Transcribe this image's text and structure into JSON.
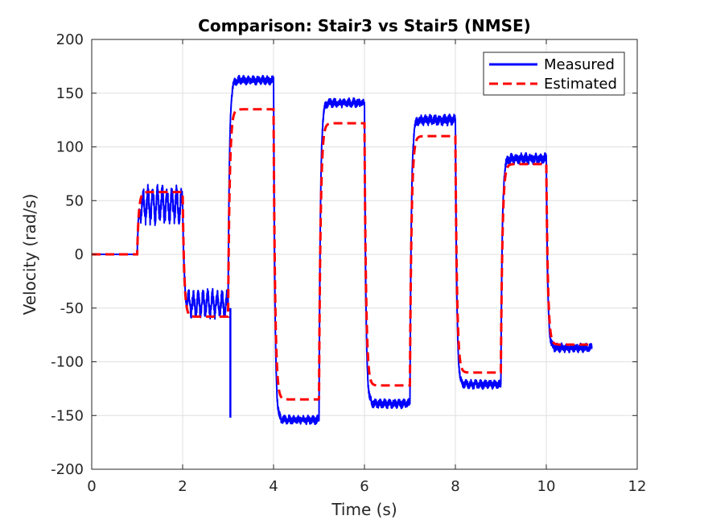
{
  "chart_data": {
    "type": "line",
    "title": "Comparison: Stair3 vs Stair5 (NMSE)",
    "xlabel": "Time (s)",
    "ylabel": "Velocity (rad/s)",
    "xlim": [
      0,
      12
    ],
    "ylim": [
      -200,
      200
    ],
    "xticks": [
      0,
      2,
      4,
      6,
      8,
      10,
      12
    ],
    "yticks": [
      -200,
      -150,
      -100,
      -50,
      0,
      50,
      100,
      150,
      200
    ],
    "xtick_labels": [
      "0",
      "2",
      "4",
      "6",
      "8",
      "10",
      "12"
    ],
    "ytick_labels": [
      "-200",
      "-150",
      "-100",
      "-50",
      "0",
      "50",
      "100",
      "150",
      "200"
    ],
    "grid": true,
    "legend_position": "top-right",
    "series": [
      {
        "name": "Measured",
        "color": "#0000ff",
        "style": "solid",
        "segments": [
          {
            "t0": 0.0,
            "t1": 1.0,
            "level": 0,
            "ripple": 0
          },
          {
            "t0": 1.0,
            "t1": 2.0,
            "level": 46,
            "ripple": 12
          },
          {
            "t0": 2.0,
            "t1": 3.0,
            "level": -46,
            "ripple": 9
          },
          {
            "t0": 3.0,
            "t1": 4.0,
            "level": 162,
            "ripple": 5
          },
          {
            "t0": 4.0,
            "t1": 5.0,
            "level": -154,
            "ripple": 5
          },
          {
            "t0": 5.0,
            "t1": 6.0,
            "level": 141,
            "ripple": 5
          },
          {
            "t0": 6.0,
            "t1": 7.0,
            "level": -139,
            "ripple": 5
          },
          {
            "t0": 7.0,
            "t1": 8.0,
            "level": 125,
            "ripple": 6
          },
          {
            "t0": 8.0,
            "t1": 9.0,
            "level": -121,
            "ripple": 5
          },
          {
            "t0": 9.0,
            "t1": 10.0,
            "level": 89,
            "ripple": 6
          },
          {
            "t0": 10.0,
            "t1": 11.0,
            "level": -87,
            "ripple": 5
          }
        ],
        "notable_points": [
          {
            "x": 3.05,
            "y": -152
          }
        ]
      },
      {
        "name": "Estimated",
        "color": "#ff0000",
        "style": "dashed",
        "segments": [
          {
            "t0": 0.0,
            "t1": 1.0,
            "level": 0
          },
          {
            "t0": 1.0,
            "t1": 2.0,
            "level": 58
          },
          {
            "t0": 2.0,
            "t1": 3.0,
            "level": -58
          },
          {
            "t0": 3.0,
            "t1": 4.0,
            "level": 135
          },
          {
            "t0": 4.0,
            "t1": 5.0,
            "level": -135
          },
          {
            "t0": 5.0,
            "t1": 6.0,
            "level": 122
          },
          {
            "t0": 6.0,
            "t1": 7.0,
            "level": -122
          },
          {
            "t0": 7.0,
            "t1": 8.0,
            "level": 110
          },
          {
            "t0": 8.0,
            "t1": 9.0,
            "level": -110
          },
          {
            "t0": 9.0,
            "t1": 10.0,
            "level": 84
          },
          {
            "t0": 10.0,
            "t1": 11.0,
            "level": -84
          }
        ]
      }
    ]
  }
}
